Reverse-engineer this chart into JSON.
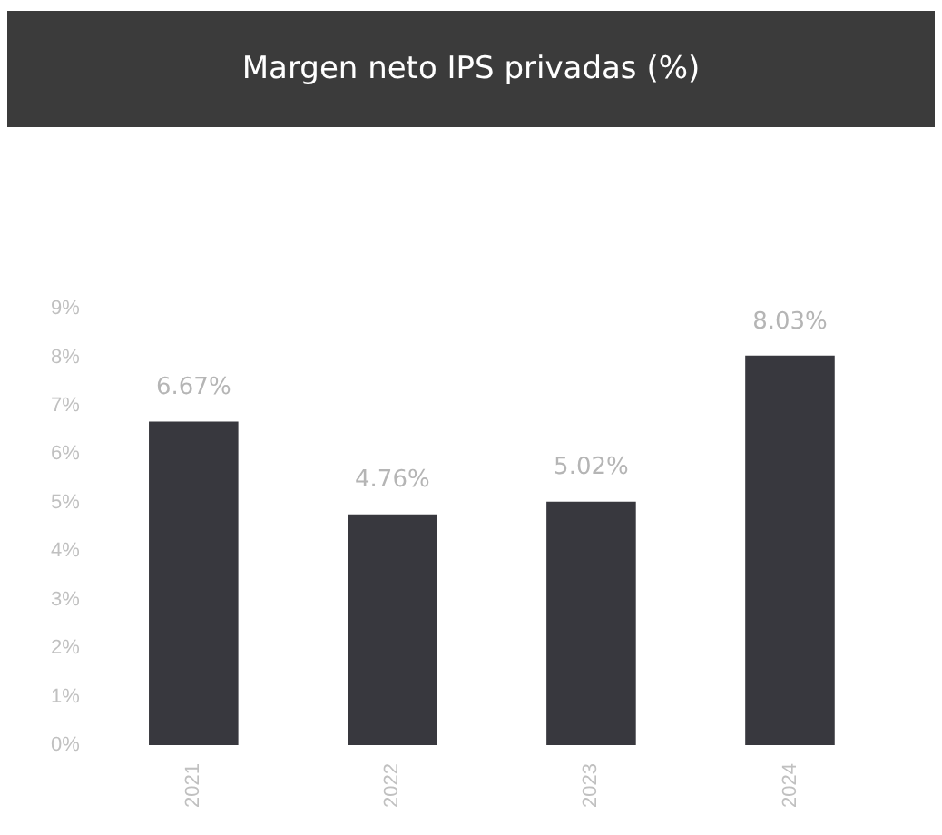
{
  "chart_data": {
    "type": "bar",
    "title": "Margen neto IPS privadas (%)",
    "categories": [
      "2021",
      "2022",
      "2023",
      "2024"
    ],
    "values": [
      6.67,
      4.76,
      5.02,
      8.03
    ],
    "value_labels": [
      "6.67%",
      "4.76%",
      "5.02%",
      "8.03%"
    ],
    "color": "#38383e",
    "ylim": [
      0,
      9
    ],
    "yticks": [
      {
        "value": 0,
        "label": "0%"
      },
      {
        "value": 1,
        "label": "1%"
      },
      {
        "value": 2,
        "label": "2%"
      },
      {
        "value": 3,
        "label": "3%"
      },
      {
        "value": 4,
        "label": "4%"
      },
      {
        "value": 5,
        "label": "5%"
      },
      {
        "value": 6,
        "label": "6%"
      },
      {
        "value": 7,
        "label": "7%"
      },
      {
        "value": 8,
        "label": "8%"
      },
      {
        "value": 9,
        "label": "9%"
      }
    ],
    "grid": false,
    "legend": false
  }
}
